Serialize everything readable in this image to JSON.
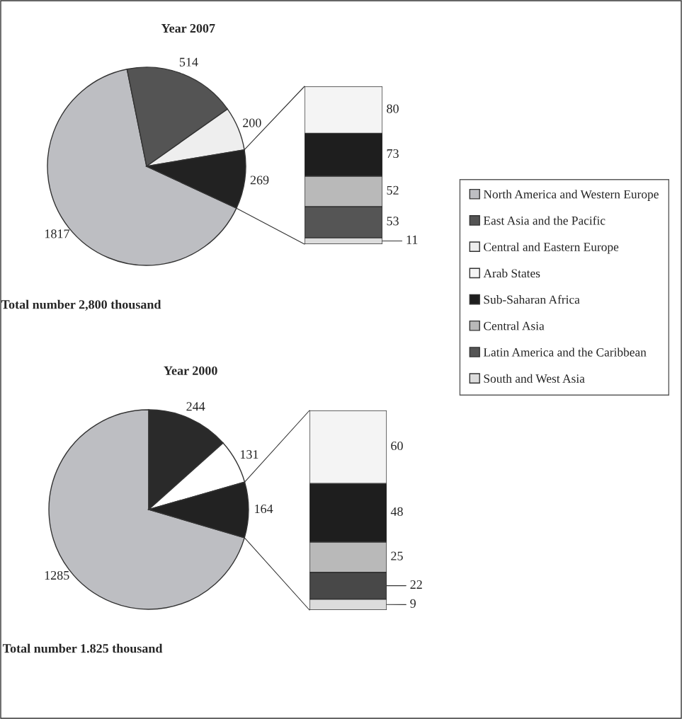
{
  "chart_data": [
    {
      "type": "pie",
      "title": "Year 2007",
      "categories": [
        "North America and Western Europe",
        "East Asia and the Pacific",
        "Central and Eastern Europe",
        null
      ],
      "values": [
        1817,
        514,
        200,
        269
      ],
      "colors": [
        "#bdbec2",
        "#545454",
        "#eeeeee",
        "#222222"
      ],
      "data_labels": true,
      "legend": "right",
      "annotations": [
        "Total number 2,800 thousand"
      ]
    },
    {
      "type": "bar",
      "stacked": true,
      "categories": [
        null
      ],
      "data_labels": true,
      "legend": "right",
      "series": [
        {
          "name": "South and West Asia",
          "color": "#dcdcdc",
          "values": [
            11
          ]
        },
        {
          "name": "Latin America and the Caribbean",
          "color": "#555555",
          "values": [
            53
          ]
        },
        {
          "name": "Central Asia",
          "color": "#b9b9b9",
          "values": [
            52
          ]
        },
        {
          "name": "Sub-Saharan Africa",
          "color": "#1e1e1e",
          "values": [
            73
          ]
        },
        {
          "name": "Arab States",
          "color": "#f4f4f4",
          "values": [
            80
          ]
        }
      ]
    },
    {
      "type": "pie",
      "title": "Year 2000",
      "categories": [
        null,
        null,
        null,
        null
      ],
      "values": [
        1285,
        244,
        131,
        164
      ],
      "colors": [
        "#bdbec2",
        "#2a2a2a",
        "#ffffff",
        "#222222"
      ],
      "data_labels": true,
      "annotations": [
        "Total number 1.825 thousand"
      ]
    },
    {
      "type": "bar",
      "stacked": true,
      "categories": [
        null
      ],
      "data_labels": true,
      "series": [
        {
          "color": "#dcdcdc",
          "values": [
            9
          ]
        },
        {
          "color": "#484848",
          "values": [
            22
          ]
        },
        {
          "color": "#b9b9b9",
          "values": [
            25
          ]
        },
        {
          "color": "#1e1e1e",
          "values": [
            48
          ]
        },
        {
          "color": "#f4f4f4",
          "values": [
            60
          ]
        }
      ]
    }
  ]
}
